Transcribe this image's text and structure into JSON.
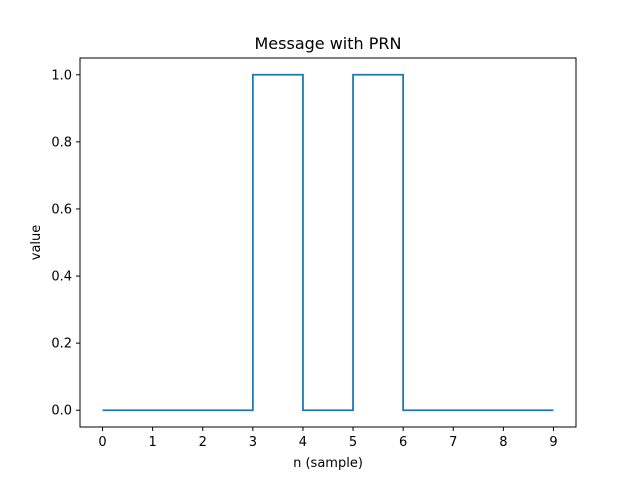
{
  "chart_data": {
    "type": "line",
    "step": "post",
    "title": "Message with PRN",
    "xlabel": "n (sample)",
    "ylabel": "value",
    "xlim": [
      -0.45,
      9.45
    ],
    "ylim": [
      -0.05,
      1.05
    ],
    "xticks": [
      0,
      1,
      2,
      3,
      4,
      5,
      6,
      7,
      8,
      9
    ],
    "yticks": [
      0.0,
      0.2,
      0.4,
      0.6,
      0.8,
      1.0
    ],
    "xtick_labels": [
      "0",
      "1",
      "2",
      "3",
      "4",
      "5",
      "6",
      "7",
      "8",
      "9"
    ],
    "ytick_labels": [
      "0.0",
      "0.2",
      "0.4",
      "0.6",
      "0.8",
      "1.0"
    ],
    "grid": false,
    "series": [
      {
        "color": "#1f77b4",
        "x": [
          0,
          1,
          2,
          3,
          4,
          5,
          6,
          7,
          8,
          9
        ],
        "y": [
          0,
          0,
          0,
          1,
          0,
          1,
          0,
          0,
          0,
          0
        ]
      }
    ]
  }
}
